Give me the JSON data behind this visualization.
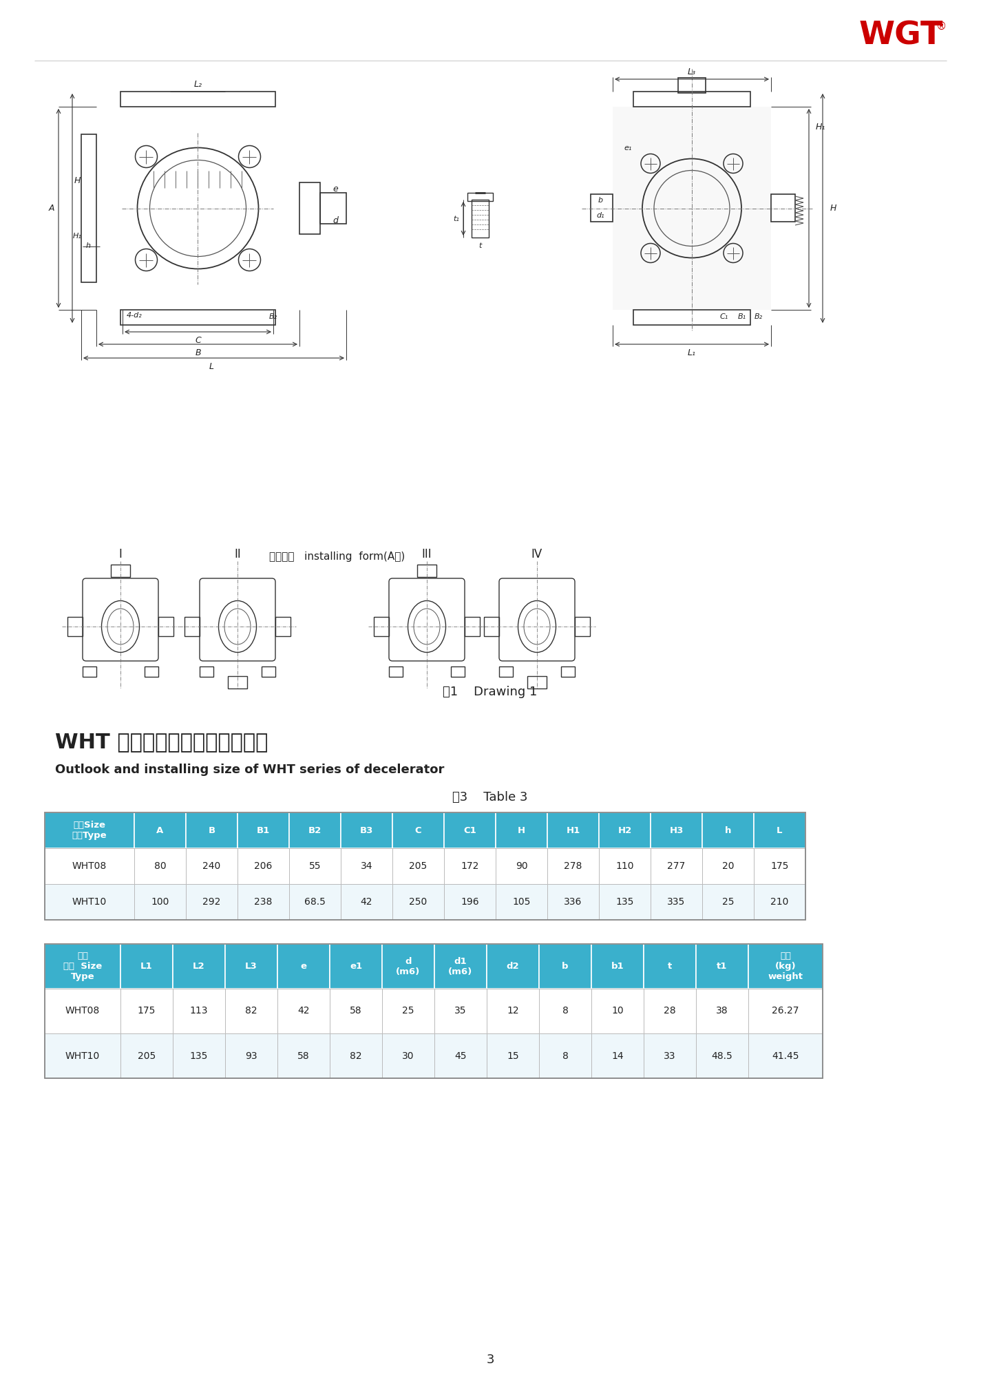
{
  "title_cn": "WHT 系列减速器外形及安装尺寸",
  "title_en": "Outlook and installing size of WHT series of decelerator",
  "table_title": "表3    Table 3",
  "logo_text": "WGT",
  "fig_label": "图1    Drawing 1",
  "page_num": "3",
  "header_color": "#3ab0cc",
  "header_text_color": "#ffffff",
  "data_row1_color": "#ffffff",
  "data_row2_color": "#f0f9ff",
  "table1_headers": [
    "尺寸Size\n型号Type",
    "A",
    "B",
    "B1",
    "B2",
    "B3",
    "C",
    "C1",
    "H",
    "H1",
    "H2",
    "H3",
    "h",
    "L"
  ],
  "table1_data": [
    [
      "WHT08",
      "80",
      "240",
      "206",
      "55",
      "34",
      "205",
      "172",
      "90",
      "278",
      "110",
      "277",
      "20",
      "175"
    ],
    [
      "WHT10",
      "100",
      "292",
      "238",
      "68.5",
      "42",
      "250",
      "196",
      "105",
      "336",
      "135",
      "335",
      "25",
      "210"
    ]
  ],
  "table2_headers": [
    "尺寸\n型号  Size\nType",
    "L1",
    "L2",
    "L3",
    "e",
    "e1",
    "d\n(m6)",
    "d1\n(m6)",
    "d2",
    "b",
    "b1",
    "t",
    "t1",
    "重量\n(kg)\nweight"
  ],
  "table2_data": [
    [
      "WHT08",
      "175",
      "113",
      "82",
      "42",
      "58",
      "25",
      "35",
      "12",
      "8",
      "10",
      "28",
      "38",
      "26.27"
    ],
    [
      "WHT10",
      "205",
      "135",
      "93",
      "58",
      "82",
      "30",
      "45",
      "15",
      "8",
      "14",
      "33",
      "48.5",
      "41.45"
    ]
  ]
}
